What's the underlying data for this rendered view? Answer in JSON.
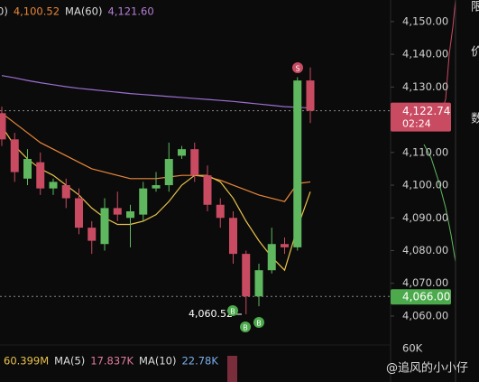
{
  "chart_data": {
    "type": "candlestick",
    "legend_top": [
      {
        "text": "0)",
        "color": "#dddddd"
      },
      {
        "text": "4,100.52",
        "color": "#e8873a"
      },
      {
        "text": "MA(60)",
        "color": "#dddddd"
      },
      {
        "text": "4,121.60",
        "color": "#b57fd6"
      }
    ],
    "legend_bottom": [
      {
        "text": "60.399M",
        "color": "#e8c14a"
      },
      {
        "text": "MA(5)",
        "color": "#dddddd"
      },
      {
        "text": "17.837K",
        "color": "#e07aa0"
      },
      {
        "text": "MA(10)",
        "color": "#dddddd"
      },
      {
        "text": "22.78K",
        "color": "#7aaee8"
      }
    ],
    "up_color": "#5fb85f",
    "down_color": "#c94b62",
    "open": [
      4122,
      4114,
      4102,
      4107,
      4099,
      4100,
      4096,
      4087,
      4082,
      4093,
      4090,
      4091,
      4099,
      4100,
      4109,
      4111,
      4103,
      4094,
      4090,
      4079,
      4066,
      4074,
      4082,
      4081,
      4132
    ],
    "high": [
      4124,
      4116,
      4111,
      4110,
      4102,
      4102,
      4099,
      4089,
      4096,
      4098,
      4094,
      4101,
      4104,
      4113,
      4112,
      4113,
      4106,
      4096,
      4092,
      4080,
      4076,
      4087,
      4084,
      4133,
      4136
    ],
    "low": [
      4112,
      4101,
      4100,
      4097,
      4097,
      4093,
      4085,
      4079,
      4080,
      4089,
      4081,
      4089,
      4098,
      4098,
      4108,
      4101,
      4092,
      4087,
      4076,
      4060.52,
      4063,
      4073,
      4079,
      4080,
      4119
    ],
    "close": [
      4114,
      4104,
      4108,
      4099,
      4101,
      4096,
      4087,
      4083,
      4093,
      4091,
      4092,
      4099,
      4100,
      4108,
      4111,
      4103,
      4094,
      4090,
      4079,
      4066,
      4074,
      4082,
      4081,
      4132,
      4122.74
    ],
    "series": [
      {
        "color": "#9b6fd0",
        "values": [
          4133.5,
          4132.8,
          4132,
          4131.3,
          4130.7,
          4130.1,
          4129.6,
          4129.2,
          4128.8,
          4128.4,
          4128,
          4127.7,
          4127.4,
          4127.1,
          4126.8,
          4126.5,
          4126.2,
          4125.9,
          4125.6,
          4125.2,
          4124.8,
          4124.4,
          4124,
          4123.8,
          4123.6
        ]
      },
      {
        "color": "#e8873a",
        "values": [
          4122,
          4119,
          4116,
          4113,
          4111,
          4109,
          4107,
          4105,
          4104,
          4103,
          4102,
          4102,
          4102,
          4102.5,
          4103,
          4103,
          4102.5,
          4101.5,
          4100,
          4098.5,
          4097,
          4096,
          4095,
          4100.5,
          4101
        ]
      },
      {
        "color": "#e8c14a",
        "values": [
          4118,
          4112,
          4108,
          4105,
          4103,
          4100,
          4097,
          4093,
          4090,
          4088,
          4088,
          4089,
          4091,
          4095,
          4100,
          4103,
          4103,
          4101,
          4096,
          4089,
          4083,
          4078,
          4074,
          4087,
          4098
        ]
      }
    ],
    "ylim": [
      4051.7,
      4156.6
    ],
    "yticks": [
      {
        "value": 4060,
        "label": "4,060.00"
      },
      {
        "value": 4070,
        "label": "4,070.00"
      },
      {
        "value": 4080,
        "label": "4,080.00"
      },
      {
        "value": 4090,
        "label": "4,090.00"
      },
      {
        "value": 4100,
        "label": "4,100.00"
      },
      {
        "value": 4110,
        "label": "4,110.00"
      },
      {
        "value": 4120,
        "label": "4,120.00"
      },
      {
        "value": 4130,
        "label": "4,130.00"
      },
      {
        "value": 4140,
        "label": "4,140.00"
      },
      {
        "value": 4150,
        "label": "4,150.00"
      }
    ],
    "last_price": {
      "value": 4122.74,
      "label": "4,122.74",
      "time": "02:24"
    },
    "marker_price": {
      "value": 4066,
      "label": "4,066.00"
    },
    "low_label": "4,060.52",
    "signals": [
      "S",
      "B",
      "B",
      "B"
    ],
    "volume_tick": "60K",
    "side_labels": [
      "限",
      "价",
      "数"
    ],
    "watermark": "@追风的小小仔"
  }
}
